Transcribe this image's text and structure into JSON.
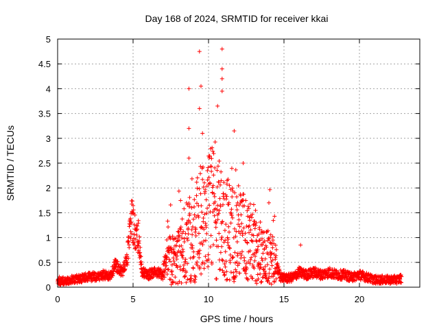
{
  "chart_data": {
    "type": "scatter",
    "title": "Day 168 of 2024, SRMTID for receiver kkai",
    "xlabel": "GPS time / hours",
    "ylabel": "SRMTID / TECUs",
    "xlim": [
      0,
      24
    ],
    "ylim": [
      0,
      5
    ],
    "xticks": [
      0,
      5,
      10,
      15,
      20
    ],
    "yticks": [
      0,
      0.5,
      1,
      1.5,
      2,
      2.5,
      3,
      3.5,
      4,
      4.5,
      5
    ],
    "xtick_labels": [
      "0",
      "5",
      "10",
      "15",
      "20"
    ],
    "ytick_labels": [
      "0",
      "0.5",
      "1",
      "1.5",
      "2",
      "2.5",
      "3",
      "3.5",
      "4",
      "4.5",
      "5"
    ],
    "grid": true,
    "marker": "+",
    "color": "#ff0000",
    "series": [
      {
        "name": "SRMTID",
        "note": "approximate envelope of the dense point cloud (hour, typical value)",
        "x": [
          0.0,
          0.2,
          0.5,
          1.0,
          1.5,
          2.0,
          2.5,
          3.0,
          3.5,
          3.8,
          4.0,
          4.3,
          4.6,
          4.8,
          4.95,
          5.05,
          5.2,
          5.35,
          5.6,
          6.0,
          6.5,
          7.0,
          7.3,
          7.6,
          8.0,
          8.4,
          8.7,
          9.0,
          9.3,
          9.6,
          10.0,
          10.4,
          10.8,
          11.2,
          11.6,
          12.0,
          12.4,
          12.8,
          13.2,
          13.6,
          14.0,
          14.4,
          14.8,
          15.2,
          15.6,
          16.0,
          16.5,
          17.0,
          17.5,
          18.0,
          18.5,
          19.0,
          19.5,
          20.0,
          20.5,
          21.0,
          21.5,
          22.0,
          22.5,
          22.8
        ],
        "y": [
          0.15,
          0.12,
          0.13,
          0.15,
          0.17,
          0.2,
          0.22,
          0.25,
          0.22,
          0.45,
          0.4,
          0.3,
          0.6,
          1.1,
          1.4,
          1.3,
          0.9,
          1.0,
          0.3,
          0.25,
          0.3,
          0.25,
          0.6,
          0.5,
          0.7,
          0.6,
          0.9,
          0.9,
          1.2,
          1.5,
          1.4,
          1.6,
          1.3,
          1.2,
          1.1,
          1.1,
          1.0,
          0.8,
          0.7,
          0.6,
          0.6,
          0.5,
          0.2,
          0.18,
          0.2,
          0.3,
          0.25,
          0.3,
          0.25,
          0.3,
          0.25,
          0.25,
          0.2,
          0.25,
          0.2,
          0.15,
          0.15,
          0.15,
          0.15,
          0.18
        ]
      }
    ],
    "peaks": [
      {
        "x": 9.4,
        "y": 4.75
      },
      {
        "x": 10.9,
        "y": 4.8
      },
      {
        "x": 10.9,
        "y": 4.4
      },
      {
        "x": 8.7,
        "y": 4.0
      },
      {
        "x": 9.5,
        "y": 4.05
      },
      {
        "x": 10.9,
        "y": 4.2
      },
      {
        "x": 10.9,
        "y": 3.95
      },
      {
        "x": 10.6,
        "y": 3.65
      },
      {
        "x": 9.4,
        "y": 3.6
      },
      {
        "x": 11.7,
        "y": 3.15
      },
      {
        "x": 8.7,
        "y": 3.2
      },
      {
        "x": 9.6,
        "y": 3.1
      },
      {
        "x": 12.3,
        "y": 2.5
      },
      {
        "x": 8.7,
        "y": 2.6
      },
      {
        "x": 14.0,
        "y": 1.7
      },
      {
        "x": 16.1,
        "y": 0.85
      }
    ]
  }
}
